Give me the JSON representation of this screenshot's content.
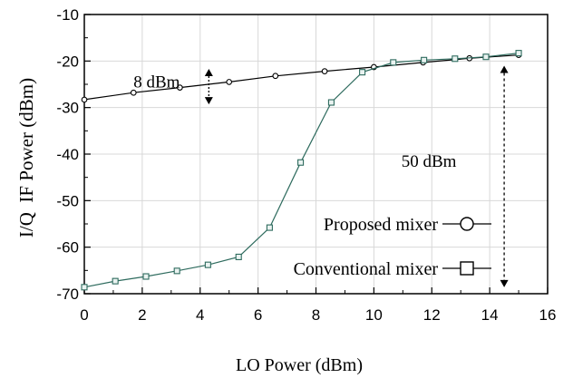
{
  "chart_data": {
    "type": "line",
    "xlabel": "LO Power (dBm)",
    "ylabel": "I/Q  IF Power (dBm)",
    "xlim": [
      0,
      16
    ],
    "ylim": [
      -70,
      -10
    ],
    "xticks": [
      0,
      2,
      4,
      6,
      8,
      10,
      12,
      14,
      16
    ],
    "yticks": [
      -10,
      -20,
      -30,
      -40,
      -50,
      -60,
      -70
    ],
    "grid": true,
    "series": [
      {
        "name": "Proposed mixer",
        "marker": "circle",
        "color": "#000000",
        "x": [
          0,
          1.7,
          3.3,
          5.0,
          6.6,
          8.3,
          10.0,
          11.7,
          13.3,
          15.0
        ],
        "y": [
          -28.3,
          -26.8,
          -25.7,
          -24.5,
          -23.2,
          -22.2,
          -21.3,
          -20.3,
          -19.4,
          -18.7
        ]
      },
      {
        "name": "Conventional mixer",
        "marker": "square",
        "color": "#2e6b5e",
        "x": [
          0,
          1.07,
          2.13,
          3.2,
          4.27,
          5.33,
          6.4,
          7.47,
          8.53,
          9.6,
          10.67,
          11.73,
          12.8,
          13.87,
          15.0
        ],
        "y": [
          -68.6,
          -67.3,
          -66.3,
          -65.1,
          -63.8,
          -62.1,
          -55.8,
          -41.8,
          -28.9,
          -22.4,
          -20.3,
          -19.8,
          -19.5,
          -19.1,
          -18.3
        ]
      }
    ],
    "annotations": [
      {
        "text": "8 dBm",
        "x": 2.5,
        "y": -24.5,
        "arrow": {
          "x": 4.3,
          "y1": -21.7,
          "y2": -29.3,
          "style": "dotted"
        }
      },
      {
        "text": "50 dBm",
        "x": 11.9,
        "y": -41.6,
        "arrow": {
          "x": 14.5,
          "y1": -21.0,
          "y2": -68.6,
          "style": "dashed"
        }
      }
    ],
    "legend_placement": "bottom-right",
    "legend_entries": [
      "Proposed mixer",
      "Conventional mixer"
    ]
  }
}
